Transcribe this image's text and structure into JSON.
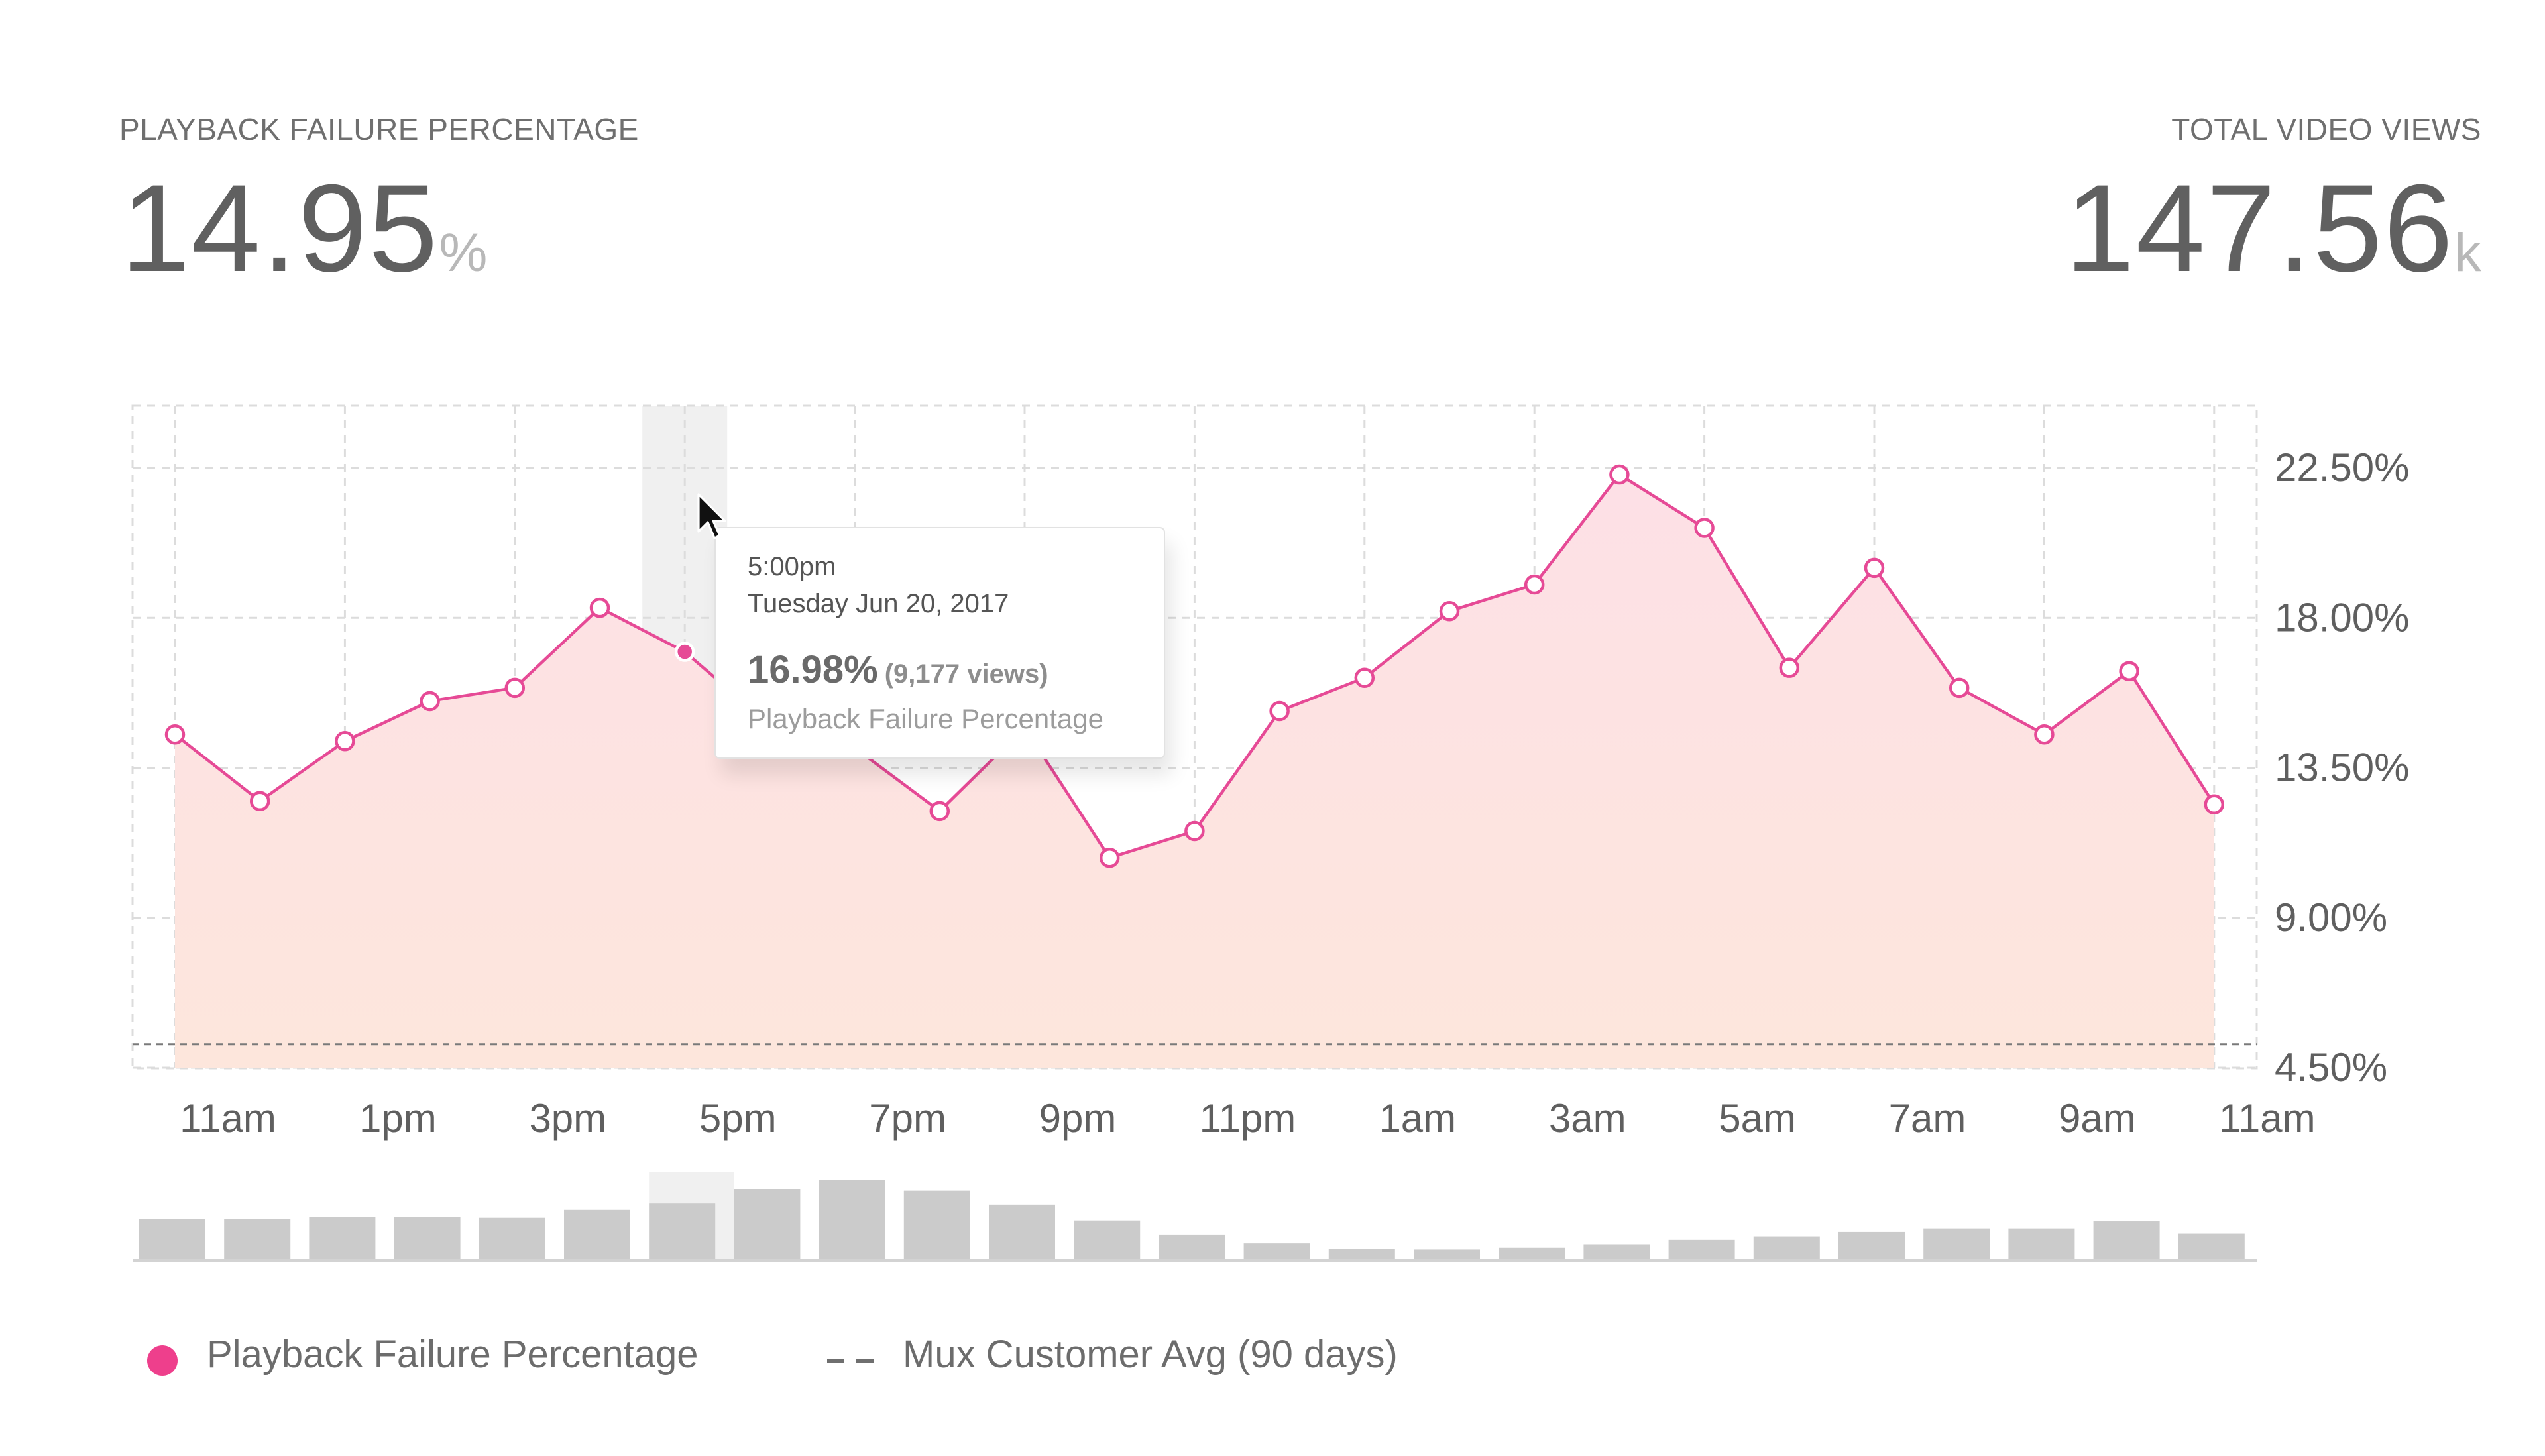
{
  "metrics": {
    "left": {
      "label": "PLAYBACK FAILURE PERCENTAGE",
      "value": "14.95",
      "unit": "%"
    },
    "right": {
      "label": "TOTAL VIDEO VIEWS",
      "value": "147.56",
      "unit": "k"
    }
  },
  "chart_data": {
    "type": "area",
    "x_tick_labels": [
      "11am",
      "1pm",
      "3pm",
      "5pm",
      "7pm",
      "9pm",
      "11pm",
      "1am",
      "3am",
      "5am",
      "7am",
      "9am",
      "11am"
    ],
    "y_tick_labels": [
      "22.50%",
      "18.00%",
      "13.50%",
      "9.00%",
      "4.50%"
    ],
    "ylim": [
      4.5,
      22.5
    ],
    "y_ticks": [
      4.5,
      9.0,
      13.5,
      18.0,
      22.5
    ],
    "series": [
      {
        "name": "Playback Failure Percentage",
        "color": "#e64a96",
        "values": [
          14.5,
          12.5,
          14.3,
          15.5,
          15.9,
          18.3,
          16.98,
          14.8,
          14.1,
          12.2,
          14.7,
          10.8,
          11.6,
          15.2,
          16.2,
          18.2,
          19.0,
          22.3,
          20.7,
          16.5,
          19.5,
          15.9,
          14.5,
          16.4,
          12.4
        ]
      }
    ],
    "reference_line": {
      "name": "Mux Customer Avg (90 days)",
      "value": 5.2,
      "style": "dashed"
    },
    "views_bars": [
      2.3,
      2.3,
      2.4,
      2.4,
      2.35,
      2.8,
      3.2,
      4.0,
      4.5,
      3.9,
      3.1,
      2.2,
      1.4,
      0.9,
      0.6,
      0.55,
      0.65,
      0.85,
      1.1,
      1.3,
      1.55,
      1.75,
      1.75,
      2.15,
      1.45
    ],
    "highlighted_index": 6,
    "grid": true,
    "legend_position": "bottom-left"
  },
  "tooltip": {
    "time": "5:00pm",
    "date": "Tuesday Jun 20, 2017",
    "value": "16.98%",
    "views": "(9,177 views)",
    "metric": "Playback Failure Percentage"
  },
  "legend": {
    "series_label": "Playback Failure Percentage",
    "avg_label": "Mux Customer Avg (90 days)"
  },
  "colors": {
    "accent": "#e64a96",
    "area_top": "#fde0e5",
    "area_bottom": "#fde6dc",
    "bars": "#cbcbcb",
    "grid": "#dddddd"
  },
  "icons": {
    "cursor": "mouse-pointer-icon"
  }
}
